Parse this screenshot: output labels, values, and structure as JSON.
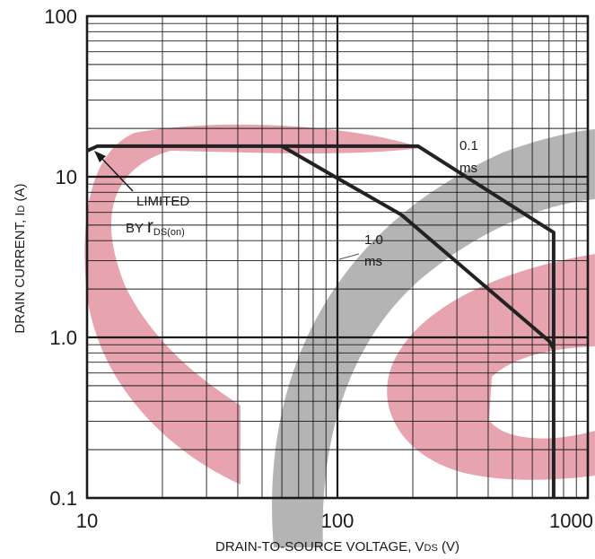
{
  "chart_data": {
    "type": "line",
    "xlabel_main": "DRAIN-TO-SOURCE VOLTAGE, V",
    "xlabel_sub": "DS",
    "xlabel_unit": " (V)",
    "ylabel_main": "DRAIN CURRENT, I",
    "ylabel_sub": "D",
    "ylabel_unit": " (A)",
    "xscale": "log",
    "yscale": "log",
    "xlim": [
      10,
      1000
    ],
    "ylim": [
      0.1,
      100
    ],
    "grid": true,
    "x_tick_labels": [
      "10",
      "100",
      "1000"
    ],
    "y_tick_labels": [
      "0.1",
      "1.0",
      "10",
      "100"
    ],
    "series": [
      {
        "name": "0.1 ms",
        "label_lines": [
          "0.1",
          "ms"
        ],
        "x": [
          10,
          11,
          210,
          730,
          730
        ],
        "y": [
          14.5,
          15.5,
          15.5,
          4.5,
          0.1
        ]
      },
      {
        "name": "1.0 ms",
        "label_lines": [
          "1.0",
          "ms"
        ],
        "x": [
          60,
          100,
          180,
          700,
          730
        ],
        "y": [
          15.5,
          9.8,
          5.8,
          0.95,
          0.85
        ]
      }
    ],
    "annotations": {
      "limited_line1": "LIMITED",
      "limited_line2_prefix": "BY ",
      "limited_r": "r",
      "limited_sub": "DS(on)"
    },
    "watermark_colors": {
      "pink": "#e7a3ae",
      "gray": "#b4b4b4"
    }
  }
}
